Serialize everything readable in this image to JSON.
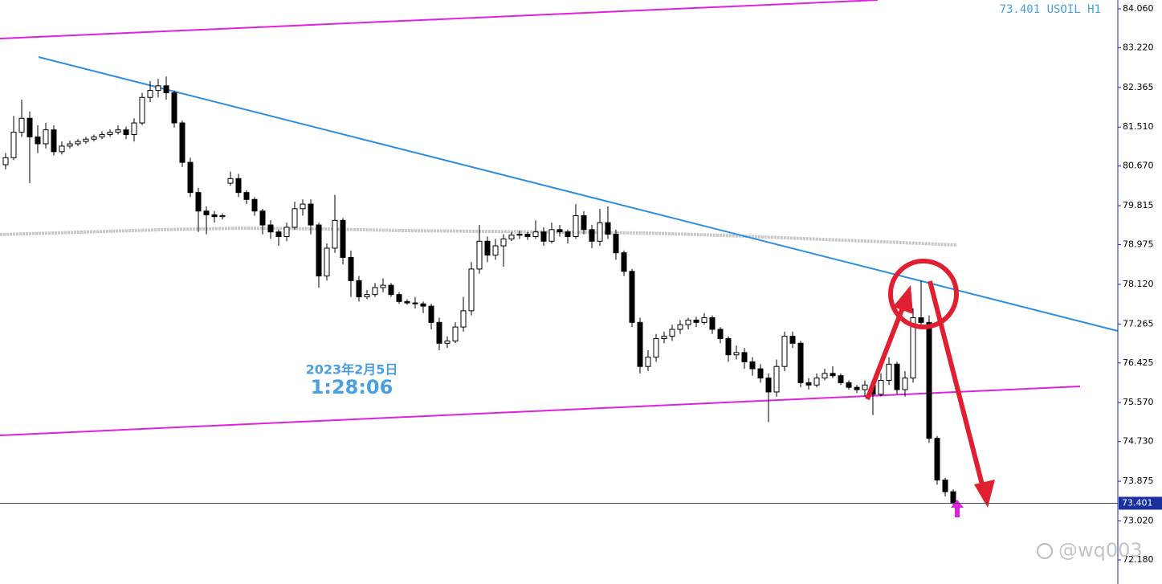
{
  "chart_data": {
    "type": "candlestick",
    "title": "73.401 USOIL H1",
    "ohlc": [
      [
        80.7,
        80.95,
        80.6,
        80.85
      ],
      [
        80.85,
        81.75,
        80.8,
        81.4
      ],
      [
        81.4,
        82.1,
        81.3,
        81.7
      ],
      [
        81.7,
        81.85,
        80.3,
        81.3
      ],
      [
        81.3,
        81.55,
        80.95,
        81.15
      ],
      [
        81.15,
        81.6,
        81.05,
        81.45
      ],
      [
        81.45,
        81.55,
        80.9,
        80.98
      ],
      [
        80.98,
        81.2,
        80.92,
        81.1
      ],
      [
        81.1,
        81.22,
        81.05,
        81.15
      ],
      [
        81.15,
        81.25,
        81.1,
        81.2
      ],
      [
        81.2,
        81.3,
        81.15,
        81.25
      ],
      [
        81.25,
        81.35,
        81.2,
        81.3
      ],
      [
        81.3,
        81.42,
        81.25,
        81.35
      ],
      [
        81.35,
        81.46,
        81.3,
        81.4
      ],
      [
        81.4,
        81.55,
        81.35,
        81.45
      ],
      [
        81.45,
        81.52,
        81.25,
        81.35
      ],
      [
        81.35,
        81.7,
        81.2,
        81.6
      ],
      [
        81.6,
        82.25,
        81.55,
        82.15
      ],
      [
        82.15,
        82.5,
        82.05,
        82.3
      ],
      [
        82.3,
        82.55,
        82.15,
        82.4
      ],
      [
        82.4,
        82.6,
        82.1,
        82.25
      ],
      [
        82.25,
        82.3,
        81.5,
        81.6
      ],
      [
        81.6,
        81.65,
        80.65,
        80.75
      ],
      [
        80.75,
        80.85,
        80.0,
        80.1
      ],
      [
        80.1,
        80.2,
        79.25,
        79.7
      ],
      [
        79.7,
        79.8,
        79.2,
        79.62
      ],
      [
        79.62,
        79.7,
        79.45,
        79.58
      ],
      [
        79.58,
        79.65,
        79.52,
        79.6
      ],
      [
        80.3,
        80.55,
        80.25,
        80.4
      ],
      [
        80.4,
        80.5,
        80.0,
        80.1
      ],
      [
        80.1,
        80.15,
        79.85,
        79.95
      ],
      [
        79.95,
        80.0,
        79.6,
        79.7
      ],
      [
        79.7,
        79.75,
        79.2,
        79.4
      ],
      [
        79.4,
        79.5,
        79.1,
        79.25
      ],
      [
        79.25,
        79.3,
        78.95,
        79.15
      ],
      [
        79.15,
        79.45,
        79.05,
        79.35
      ],
      [
        79.35,
        79.9,
        79.3,
        79.75
      ],
      [
        79.75,
        79.95,
        79.6,
        79.85
      ],
      [
        79.85,
        79.95,
        79.2,
        79.4
      ],
      [
        79.4,
        79.45,
        78.05,
        78.3
      ],
      [
        78.3,
        79.0,
        78.2,
        78.9
      ],
      [
        78.9,
        80.05,
        78.8,
        79.5
      ],
      [
        79.5,
        79.55,
        78.55,
        78.7
      ],
      [
        78.7,
        78.85,
        77.85,
        78.2
      ],
      [
        78.2,
        78.3,
        77.75,
        77.85
      ],
      [
        77.85,
        78.0,
        77.8,
        77.9
      ],
      [
        77.9,
        78.15,
        77.85,
        78.05
      ],
      [
        78.05,
        78.25,
        77.95,
        78.1
      ],
      [
        78.1,
        78.15,
        77.85,
        77.9
      ],
      [
        77.9,
        77.95,
        77.7,
        77.75
      ],
      [
        77.75,
        77.8,
        77.68,
        77.72
      ],
      [
        77.72,
        77.85,
        77.6,
        77.7
      ],
      [
        77.7,
        77.75,
        77.5,
        77.65
      ],
      [
        77.65,
        77.7,
        77.15,
        77.3
      ],
      [
        77.3,
        77.4,
        76.7,
        76.85
      ],
      [
        76.85,
        77.0,
        76.75,
        76.9
      ],
      [
        76.9,
        77.3,
        76.85,
        77.2
      ],
      [
        77.2,
        77.85,
        77.1,
        77.55
      ],
      [
        77.55,
        78.6,
        77.45,
        78.45
      ],
      [
        78.45,
        79.4,
        78.35,
        79.05
      ],
      [
        79.05,
        79.15,
        78.6,
        78.75
      ],
      [
        78.75,
        79.1,
        78.65,
        78.95
      ],
      [
        78.95,
        79.2,
        78.5,
        79.1
      ],
      [
        79.1,
        79.25,
        79.05,
        79.18
      ],
      [
        79.18,
        79.28,
        79.1,
        79.2
      ],
      [
        79.2,
        79.25,
        79.08,
        79.15
      ],
      [
        79.15,
        79.5,
        79.1,
        79.25
      ],
      [
        79.25,
        79.35,
        78.95,
        79.05
      ],
      [
        79.05,
        79.45,
        79.0,
        79.3
      ],
      [
        79.3,
        79.4,
        79.15,
        79.25
      ],
      [
        79.25,
        79.3,
        79.0,
        79.15
      ],
      [
        79.15,
        79.85,
        79.1,
        79.6
      ],
      [
        79.6,
        79.7,
        79.2,
        79.3
      ],
      [
        79.3,
        79.4,
        78.9,
        79.05
      ],
      [
        79.05,
        79.75,
        78.95,
        79.45
      ],
      [
        79.45,
        79.8,
        79.1,
        79.2
      ],
      [
        79.2,
        79.3,
        78.65,
        78.8
      ],
      [
        78.8,
        78.85,
        78.3,
        78.4
      ],
      [
        78.4,
        78.45,
        77.2,
        77.3
      ],
      [
        77.3,
        77.4,
        76.2,
        76.35
      ],
      [
        76.35,
        76.7,
        76.25,
        76.55
      ],
      [
        76.55,
        77.05,
        76.45,
        76.95
      ],
      [
        76.95,
        77.1,
        76.85,
        77.0
      ],
      [
        77.0,
        77.25,
        76.9,
        77.15
      ],
      [
        77.15,
        77.35,
        77.05,
        77.25
      ],
      [
        77.25,
        77.4,
        77.15,
        77.35
      ],
      [
        77.35,
        77.42,
        77.2,
        77.3
      ],
      [
        77.3,
        77.5,
        77.25,
        77.4
      ],
      [
        77.4,
        77.45,
        77.05,
        77.15
      ],
      [
        77.15,
        77.2,
        76.85,
        76.95
      ],
      [
        76.95,
        77.0,
        76.45,
        76.6
      ],
      [
        76.6,
        76.8,
        76.5,
        76.65
      ],
      [
        76.65,
        76.75,
        76.3,
        76.45
      ],
      [
        76.45,
        76.55,
        76.15,
        76.3
      ],
      [
        76.3,
        76.4,
        76.0,
        76.1
      ],
      [
        76.1,
        76.2,
        75.15,
        75.8
      ],
      [
        75.8,
        76.5,
        75.7,
        76.35
      ],
      [
        76.35,
        77.1,
        76.25,
        77.0
      ],
      [
        77.0,
        77.1,
        76.75,
        76.85
      ],
      [
        76.85,
        76.9,
        75.9,
        76.0
      ],
      [
        76.0,
        76.1,
        75.85,
        75.95
      ],
      [
        75.95,
        76.2,
        75.9,
        76.1
      ],
      [
        76.1,
        76.3,
        76.05,
        76.2
      ],
      [
        76.2,
        76.35,
        76.1,
        76.15
      ],
      [
        76.15,
        76.2,
        75.95,
        76.0
      ],
      [
        76.0,
        76.05,
        75.85,
        75.9
      ],
      [
        75.9,
        75.95,
        75.78,
        75.85
      ],
      [
        75.85,
        76.05,
        75.7,
        75.95
      ],
      [
        75.95,
        76.0,
        75.3,
        75.75
      ],
      [
        75.75,
        76.2,
        75.7,
        76.05
      ],
      [
        76.05,
        76.55,
        75.95,
        76.4
      ],
      [
        76.4,
        76.45,
        75.75,
        75.85
      ],
      [
        75.85,
        76.25,
        75.7,
        76.1
      ],
      [
        76.1,
        77.6,
        76.0,
        77.4
      ],
      [
        77.4,
        78.2,
        77.2,
        77.3
      ],
      [
        77.3,
        77.45,
        74.7,
        74.8
      ],
      [
        74.8,
        74.85,
        73.8,
        73.9
      ],
      [
        73.9,
        73.95,
        73.55,
        73.65
      ],
      [
        73.65,
        73.7,
        73.35,
        73.4
      ]
    ],
    "ylim": [
      71.66,
      84.25
    ],
    "yticks": [
      {
        "value": 84.06,
        "label": "84.060"
      },
      {
        "value": 83.22,
        "label": "83.220"
      },
      82.365,
      {
        "value": 81.51,
        "label": "81.510"
      },
      {
        "value": 80.67,
        "label": "80.670"
      },
      79.815,
      78.975,
      {
        "value": 78.12,
        "label": "78.120"
      },
      77.265,
      76.425,
      {
        "value": 75.57,
        "label": "75.570"
      },
      {
        "value": 74.73,
        "label": "74.730"
      },
      73.875,
      {
        "value": 73.02,
        "label": "73.020"
      },
      {
        "value": 72.18,
        "label": "72.180"
      }
    ],
    "current_price": 73.401,
    "annotations": [
      "2023年2月5日",
      "1:28:06"
    ],
    "watermark": "@wq003",
    "up_color": "#ffffff",
    "down_color": "#000000"
  }
}
